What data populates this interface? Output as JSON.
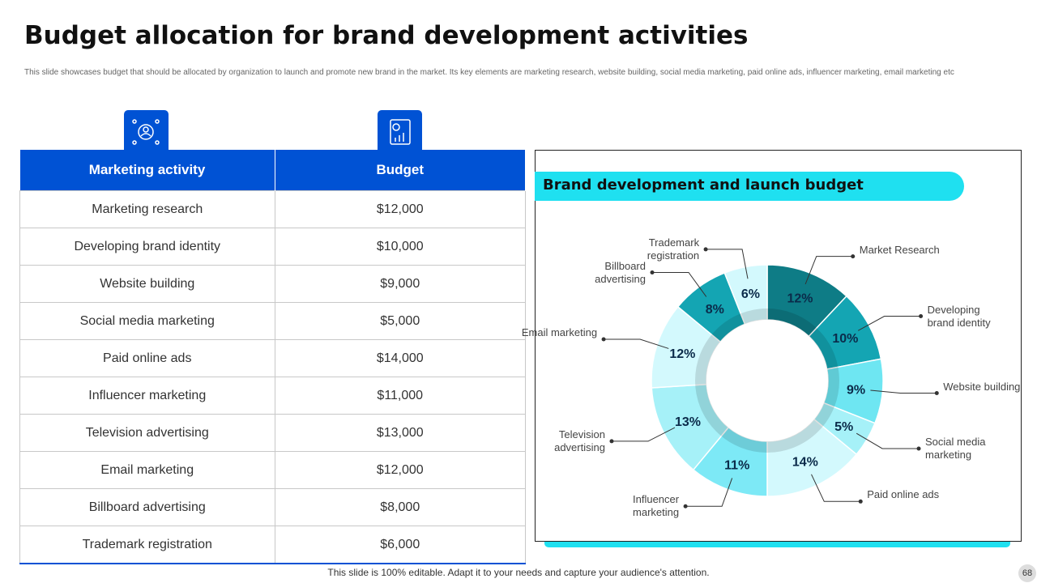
{
  "title": "Budget allocation for brand development activities",
  "subtitle": "This slide showcases budget that should be allocated by organization to launch and promote new brand in the market. Its key elements are marketing research, website building, social media marketing, paid online ads, influencer marketing, email marketing etc",
  "table": {
    "headers": [
      "Marketing activity",
      "Budget"
    ],
    "rows": [
      [
        "Marketing research",
        "$12,000"
      ],
      [
        "Developing brand identity",
        "$10,000"
      ],
      [
        "Website building",
        "$9,000"
      ],
      [
        "Social media marketing",
        "$5,000"
      ],
      [
        "Paid online ads",
        "$14,000"
      ],
      [
        "Influencer  marketing",
        "$11,000"
      ],
      [
        "Television advertising",
        "$13,000"
      ],
      [
        "Email marketing",
        "$12,000"
      ],
      [
        "Billboard advertising",
        "$8,000"
      ],
      [
        "Trademark registration",
        "$6,000"
      ]
    ]
  },
  "chart_data": {
    "type": "pie",
    "title": "Brand development and launch budget",
    "categories": [
      "Market Research",
      "Developing brand identity",
      "Website building",
      "Social media marketing",
      "Paid online ads",
      "Influencer marketing",
      "Television advertising",
      "Email marketing",
      "Billboard advertising",
      "Trademark registration"
    ],
    "values": [
      12,
      10,
      9,
      5,
      14,
      11,
      13,
      12,
      8,
      6
    ],
    "value_labels": [
      "12%",
      "10%",
      "9%",
      "5%",
      "14%",
      "11%",
      "13%",
      "12%",
      "8%",
      "6%"
    ],
    "colors": [
      "#0e7c86",
      "#14a5b3",
      "#6ee6f2",
      "#a6f1f8",
      "#d3f9fd",
      "#7de9f6",
      "#a6f1f8",
      "#d3f9fd",
      "#14a5b3",
      "#d3f9fd"
    ]
  },
  "footer": "This slide is 100% editable. Adapt it to your needs and capture your audience's attention.",
  "page_number": "68"
}
